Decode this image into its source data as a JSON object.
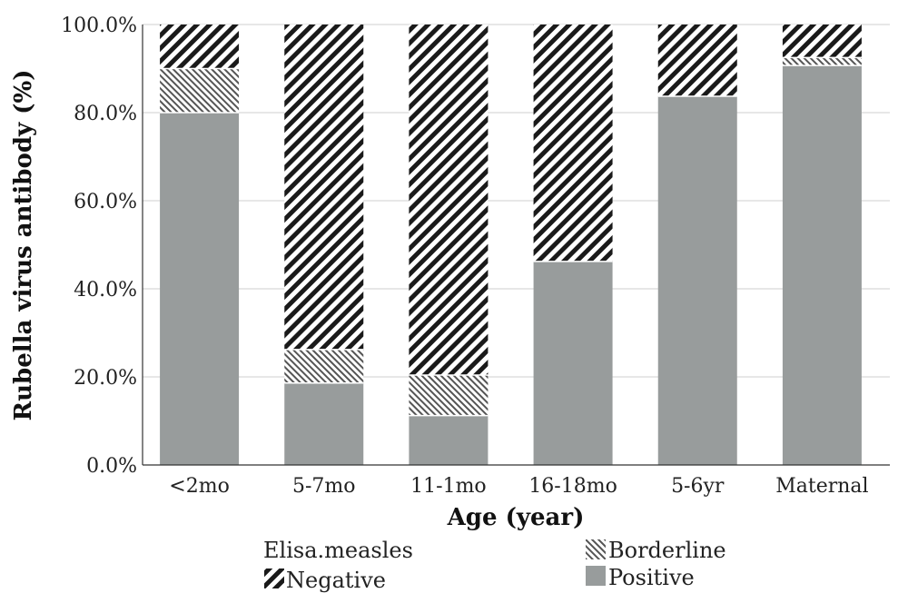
{
  "chart_data": {
    "type": "bar",
    "stacked": true,
    "categories": [
      "<2mo",
      "5-7mo",
      "11-1mo",
      "16-18mo",
      "5-6yr",
      "Maternal"
    ],
    "series": [
      {
        "name": "Positive",
        "values": [
          80.0,
          18.6,
          11.2,
          46.2,
          83.7,
          90.7
        ]
      },
      {
        "name": "Borderline",
        "values": [
          10.0,
          7.6,
          9.2,
          0.0,
          0.0,
          1.8
        ]
      },
      {
        "name": "Negative",
        "values": [
          10.0,
          73.8,
          79.6,
          53.8,
          16.3,
          7.5
        ]
      }
    ],
    "xlabel": "Age (year)",
    "ylabel": "Rubella virus antibody (%)",
    "ylim": [
      0,
      100
    ],
    "yticks": [
      "0.0%",
      "20.0%",
      "40.0%",
      "60.0%",
      "80.0%",
      "100.0%"
    ],
    "grid": true,
    "legend": {
      "title": "Elisa.measles",
      "placement": "bottom",
      "entries": [
        "Borderline",
        "Negative",
        "Positive"
      ]
    }
  }
}
